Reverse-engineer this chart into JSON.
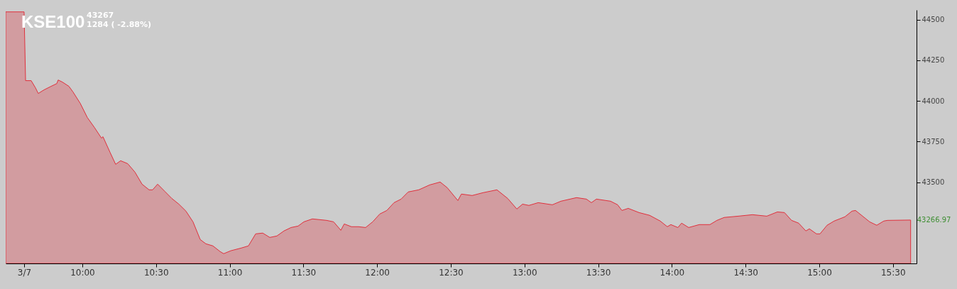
{
  "chart_data": {
    "type": "area",
    "title": "KSE100",
    "annotations": [
      "43267",
      "1284 ( -2.88%)",
      {
        "text": "43266.97",
        "x": 15.62,
        "y": 43266.97
      }
    ],
    "x": [
      9.48,
      9.605,
      9.615,
      9.653,
      9.682,
      9.701,
      9.74,
      9.788,
      9.827,
      9.836,
      9.865,
      9.909,
      9.937,
      9.986,
      10.034,
      10.082,
      10.13,
      10.14,
      10.188,
      10.226,
      10.26,
      10.308,
      10.357,
      10.405,
      10.453,
      10.477,
      10.511,
      10.559,
      10.607,
      10.655,
      10.703,
      10.751,
      10.8,
      10.838,
      10.886,
      10.935,
      10.959,
      11.007,
      11.079,
      11.127,
      11.176,
      11.224,
      11.272,
      11.32,
      11.368,
      11.416,
      11.464,
      11.503,
      11.561,
      11.657,
      11.705,
      11.754,
      11.777,
      11.826,
      11.874,
      11.922,
      11.97,
      12.018,
      12.066,
      12.115,
      12.163,
      12.211,
      12.283,
      12.356,
      12.428,
      12.476,
      12.548,
      12.572,
      12.645,
      12.717,
      12.813,
      12.886,
      12.948,
      12.987,
      13.03,
      13.093,
      13.189,
      13.247,
      13.353,
      13.42,
      13.454,
      13.488,
      13.584,
      13.632,
      13.661,
      13.704,
      13.777,
      13.849,
      13.921,
      13.969,
      13.993,
      14.041,
      14.066,
      14.114,
      14.186,
      14.258,
      14.306,
      14.355,
      14.451,
      14.547,
      14.644,
      14.716,
      14.764,
      14.812,
      14.86,
      14.909,
      14.933,
      14.981,
      15.005,
      15.053,
      15.101,
      15.174,
      15.222,
      15.246,
      15.294,
      15.342,
      15.39,
      15.438,
      15.463,
      15.62
    ],
    "series": [
      {
        "color": "#e0303c",
        "values": [
          44548,
          44548,
          44125,
          44125,
          44081,
          44046,
          44068,
          44090,
          44107,
          44129,
          44116,
          44090,
          44055,
          43985,
          43898,
          43837,
          43771,
          43780,
          43684,
          43610,
          43632,
          43614,
          43562,
          43488,
          43453,
          43453,
          43488,
          43444,
          43400,
          43365,
          43322,
          43256,
          43147,
          43121,
          43108,
          43073,
          43060,
          43078,
          43095,
          43108,
          43182,
          43187,
          43160,
          43169,
          43200,
          43221,
          43230,
          43256,
          43274,
          43265,
          43256,
          43204,
          43243,
          43226,
          43226,
          43221,
          43256,
          43304,
          43326,
          43374,
          43396,
          43440,
          43453,
          43483,
          43501,
          43466,
          43387,
          43427,
          43418,
          43435,
          43453,
          43400,
          43335,
          43365,
          43357,
          43374,
          43361,
          43383,
          43405,
          43396,
          43374,
          43396,
          43383,
          43361,
          43326,
          43339,
          43313,
          43296,
          43261,
          43226,
          43239,
          43221,
          43248,
          43221,
          43239,
          43239,
          43265,
          43283,
          43291,
          43300,
          43291,
          43317,
          43313,
          43265,
          43248,
          43200,
          43213,
          43182,
          43182,
          43235,
          43261,
          43287,
          43322,
          43326,
          43291,
          43256,
          43235,
          43261,
          43265,
          43267
        ]
      }
    ],
    "xlim": [
      9.48,
      15.66
    ],
    "xticks": [
      {
        "value": 9.605,
        "label": "3/7"
      },
      {
        "value": 10,
        "label": "10:00"
      },
      {
        "value": 10.5,
        "label": "10:30"
      },
      {
        "value": 11,
        "label": "11:00"
      },
      {
        "value": 11.5,
        "label": "11:30"
      },
      {
        "value": 12,
        "label": "12:00"
      },
      {
        "value": 12.5,
        "label": "12:30"
      },
      {
        "value": 13,
        "label": "13:00"
      },
      {
        "value": 13.5,
        "label": "13:30"
      },
      {
        "value": 14,
        "label": "14:00"
      },
      {
        "value": 14.5,
        "label": "14:30"
      },
      {
        "value": 15,
        "label": "15:00"
      },
      {
        "value": 15.5,
        "label": "15:30"
      }
    ],
    "ylim": [
      43000,
      44560
    ],
    "yticks": [
      43500,
      43750,
      44000,
      44250,
      44500
    ],
    "grid": false
  }
}
